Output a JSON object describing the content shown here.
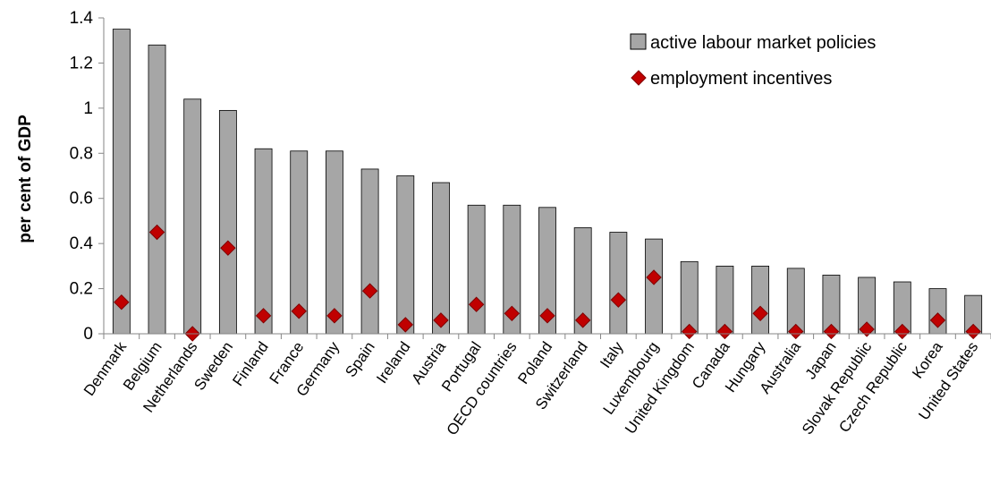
{
  "chart_data": {
    "type": "bar",
    "title": "",
    "xlabel": "",
    "ylabel": "per cent of GDP",
    "ylim": [
      0,
      1.4
    ],
    "yticks": [
      "0",
      "0.2",
      "0.4",
      "0.6",
      "0.8",
      "1",
      "1.2",
      "1.4"
    ],
    "grid": false,
    "legend_position": "top-right",
    "categories": [
      "Denmark",
      "Belgium",
      "Netherlands",
      "Sweden",
      "Finland",
      "France",
      "Germany",
      "Spain",
      "Ireland",
      "Austria",
      "Portugal",
      "OECD countries",
      "Poland",
      "Switzerland",
      "Italy",
      "Luxembourg",
      "United Kingdom",
      "Canada",
      "Hungary",
      "Australia",
      "Japan",
      "Slovak Republic",
      "Czech Republic",
      "Korea",
      "United States"
    ],
    "series": [
      {
        "name": "active labour market policies",
        "kind": "bar",
        "color": "#a6a6a6",
        "values": [
          1.35,
          1.28,
          1.04,
          0.99,
          0.82,
          0.81,
          0.81,
          0.73,
          0.7,
          0.67,
          0.57,
          0.57,
          0.56,
          0.47,
          0.45,
          0.42,
          0.32,
          0.3,
          0.3,
          0.29,
          0.26,
          0.25,
          0.23,
          0.2,
          0.17
        ]
      },
      {
        "name": "employment incentives",
        "kind": "marker",
        "color": "#c00000",
        "values": [
          0.14,
          0.45,
          0.0,
          0.38,
          0.08,
          0.1,
          0.08,
          0.19,
          0.04,
          0.06,
          0.13,
          0.09,
          0.08,
          0.06,
          0.15,
          0.25,
          0.01,
          0.01,
          0.09,
          0.01,
          0.01,
          0.02,
          0.01,
          0.06,
          0.01
        ]
      }
    ]
  }
}
